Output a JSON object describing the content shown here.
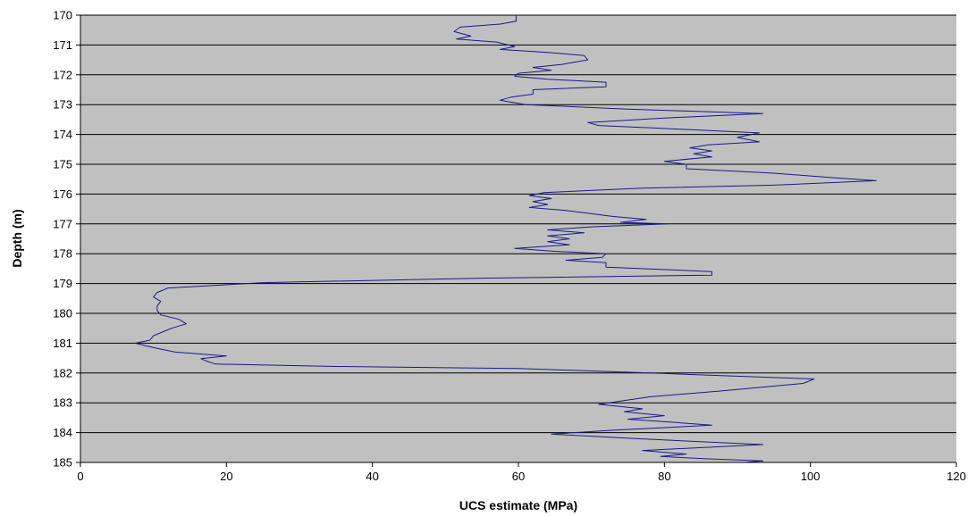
{
  "chart_data": {
    "type": "line",
    "title": "",
    "xlabel": "UCS estimate (MPa)",
    "ylabel": "Depth (m)",
    "xlim": [
      0,
      120
    ],
    "ylim": [
      170,
      185
    ],
    "y_inverted": true,
    "x_ticks": [
      0,
      20,
      40,
      60,
      80,
      100,
      120
    ],
    "y_ticks": [
      170,
      171,
      172,
      173,
      174,
      175,
      176,
      177,
      178,
      179,
      180,
      181,
      182,
      183,
      184,
      185
    ],
    "grid": "horizontal",
    "legend": "none",
    "colors": {
      "plot_background": "#c0c0c0",
      "line": "#1a1a8c",
      "gridline": "#000000"
    },
    "series": [
      {
        "points": [
          [
            59.7,
            170.0
          ],
          [
            59.7,
            170.2
          ],
          [
            57.5,
            170.3
          ],
          [
            52,
            170.4
          ],
          [
            51.2,
            170.55
          ],
          [
            53.5,
            170.7
          ],
          [
            51.5,
            170.8
          ],
          [
            57,
            170.9
          ],
          [
            59.5,
            171.05
          ],
          [
            57.5,
            171.15
          ],
          [
            64,
            171.25
          ],
          [
            69,
            171.35
          ],
          [
            69.5,
            171.5
          ],
          [
            66,
            171.65
          ],
          [
            62,
            171.75
          ],
          [
            64.5,
            171.85
          ],
          [
            60,
            171.95
          ],
          [
            59.5,
            172.05
          ],
          [
            64,
            172.15
          ],
          [
            72,
            172.25
          ],
          [
            72,
            172.4
          ],
          [
            62,
            172.5
          ],
          [
            62,
            172.65
          ],
          [
            59,
            172.75
          ],
          [
            57.5,
            172.85
          ],
          [
            61,
            173.0
          ],
          [
            75,
            173.15
          ],
          [
            93.5,
            173.3
          ],
          [
            80,
            173.45
          ],
          [
            69.5,
            173.6
          ],
          [
            71,
            173.7
          ],
          [
            80,
            173.8
          ],
          [
            93,
            173.95
          ],
          [
            90,
            174.1
          ],
          [
            93,
            174.25
          ],
          [
            86,
            174.35
          ],
          [
            83.5,
            174.45
          ],
          [
            86.5,
            174.55
          ],
          [
            84,
            174.65
          ],
          [
            86.5,
            174.75
          ],
          [
            80,
            174.9
          ],
          [
            83,
            175.0
          ],
          [
            83,
            175.15
          ],
          [
            95,
            175.3
          ],
          [
            103,
            175.45
          ],
          [
            109,
            175.55
          ],
          [
            95,
            175.7
          ],
          [
            77,
            175.8
          ],
          [
            63.5,
            175.95
          ],
          [
            61.5,
            176.05
          ],
          [
            64.5,
            176.15
          ],
          [
            62,
            176.25
          ],
          [
            64,
            176.35
          ],
          [
            61.5,
            176.45
          ],
          [
            66.5,
            176.55
          ],
          [
            73,
            176.75
          ],
          [
            77.5,
            176.85
          ],
          [
            74,
            176.95
          ],
          [
            80.5,
            177.0
          ],
          [
            70,
            177.1
          ],
          [
            64,
            177.2
          ],
          [
            69,
            177.3
          ],
          [
            64,
            177.4
          ],
          [
            67,
            177.5
          ],
          [
            64,
            177.6
          ],
          [
            67,
            177.7
          ],
          [
            59.5,
            177.82
          ],
          [
            65,
            177.92
          ],
          [
            72,
            178.0
          ],
          [
            71.5,
            178.12
          ],
          [
            66.5,
            178.22
          ],
          [
            72,
            178.3
          ],
          [
            72,
            178.45
          ],
          [
            86.5,
            178.6
          ],
          [
            86.5,
            178.72
          ],
          [
            55,
            178.82
          ],
          [
            25,
            178.97
          ],
          [
            12,
            179.15
          ],
          [
            10.5,
            179.3
          ],
          [
            10,
            179.45
          ],
          [
            11,
            179.6
          ],
          [
            10.5,
            179.75
          ],
          [
            10.5,
            179.9
          ],
          [
            11,
            180.05
          ],
          [
            13.5,
            180.2
          ],
          [
            14.5,
            180.35
          ],
          [
            12.5,
            180.5
          ],
          [
            11.5,
            180.6
          ],
          [
            10,
            180.75
          ],
          [
            9.5,
            180.9
          ],
          [
            7.5,
            181.0
          ],
          [
            10,
            181.15
          ],
          [
            13,
            181.3
          ],
          [
            20,
            181.43
          ],
          [
            16.5,
            181.52
          ],
          [
            17.5,
            181.62
          ],
          [
            18.5,
            181.7
          ],
          [
            35,
            181.78
          ],
          [
            60,
            181.85
          ],
          [
            78,
            182.0
          ],
          [
            100.5,
            182.2
          ],
          [
            99,
            182.35
          ],
          [
            88,
            182.6
          ],
          [
            78,
            182.8
          ],
          [
            71,
            183.05
          ],
          [
            77,
            183.2
          ],
          [
            74.5,
            183.3
          ],
          [
            80,
            183.43
          ],
          [
            75,
            183.55
          ],
          [
            81,
            183.65
          ],
          [
            86.5,
            183.75
          ],
          [
            73,
            183.92
          ],
          [
            64.5,
            184.05
          ],
          [
            76,
            184.2
          ],
          [
            93.5,
            184.4
          ],
          [
            77,
            184.6
          ],
          [
            83,
            184.72
          ],
          [
            79.5,
            184.8
          ],
          [
            86,
            184.88
          ],
          [
            93.5,
            184.95
          ],
          [
            91,
            185.0
          ]
        ]
      }
    ]
  }
}
